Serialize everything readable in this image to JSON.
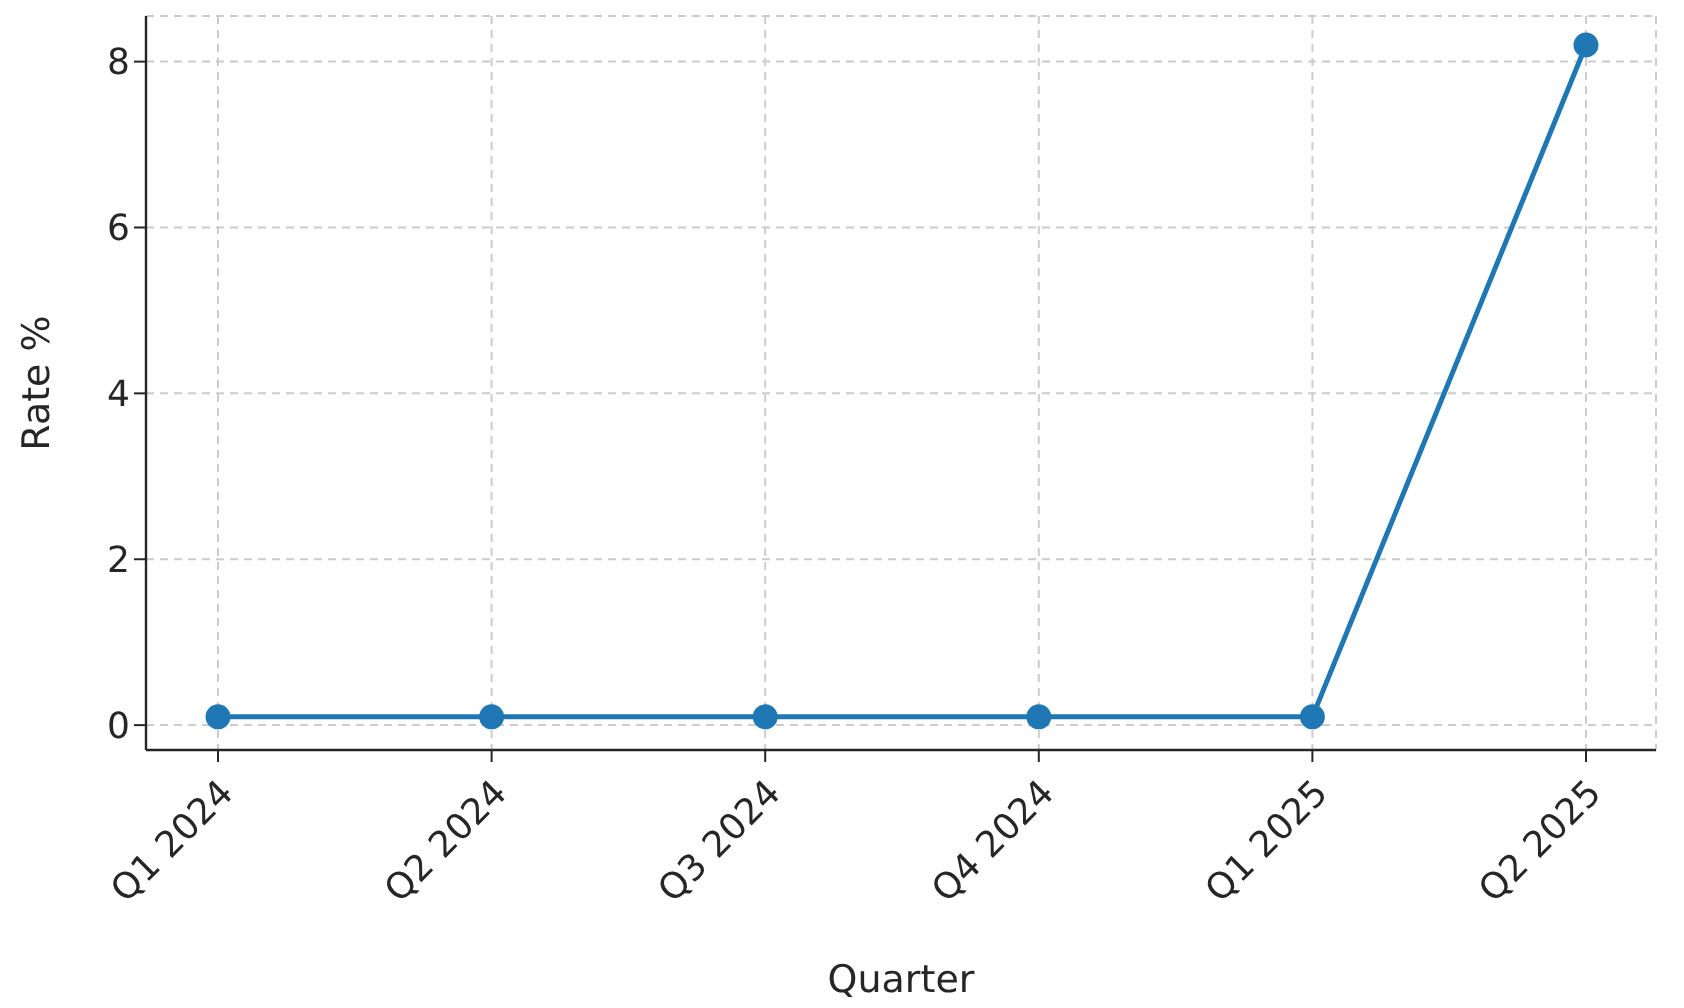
{
  "chart_data": {
    "type": "line",
    "xlabel": "Quarter",
    "ylabel": "Rate %",
    "categories": [
      "Q1 2024",
      "Q2 2024",
      "Q3 2024",
      "Q4 2024",
      "Q1 2025",
      "Q2 2025"
    ],
    "series": [
      {
        "color": "#1f77b4",
        "values": [
          0.1,
          0.1,
          0.1,
          0.1,
          0.1,
          8.2
        ]
      }
    ],
    "ylim": [
      -0.3,
      8.55
    ],
    "yticks": [
      0,
      2,
      4,
      6,
      8
    ],
    "grid": true,
    "marker": "circle",
    "line_style": "solid"
  }
}
